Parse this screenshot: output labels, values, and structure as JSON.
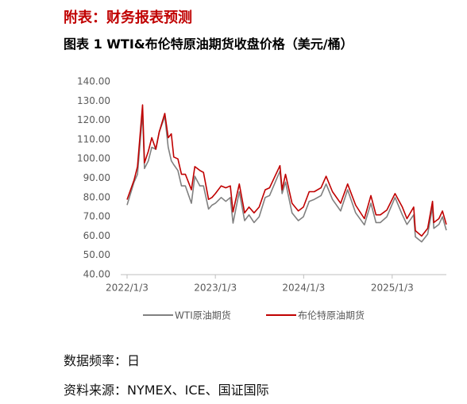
{
  "header": {
    "section": "附表：财务报表预测"
  },
  "notes": [
    "数据频率：日",
    "资料来源：NYMEX、ICE、国证国际"
  ],
  "chart_data": {
    "type": "line",
    "title": "图表 1 WTI&布伦特原油期货收盘价格（美元/桶）",
    "x": [
      "2022/1/3",
      "2022/2/1",
      "2022/2/15",
      "2022/3/8",
      "2022/3/16",
      "2022/4/1",
      "2022/4/15",
      "2022/5/2",
      "2022/5/16",
      "2022/6/8",
      "2022/6/22",
      "2022/7/5",
      "2022/7/15",
      "2022/8/1",
      "2022/8/16",
      "2022/9/1",
      "2022/9/26",
      "2022/10/10",
      "2022/10/31",
      "2022/11/15",
      "2022/12/6",
      "2022/12/20",
      "2023/1/3",
      "2023/1/27",
      "2023/2/15",
      "2023/3/6",
      "2023/3/17",
      "2023/4/12",
      "2023/5/4",
      "2023/5/22",
      "2023/6/12",
      "2023/7/3",
      "2023/7/28",
      "2023/8/15",
      "2023/9/27",
      "2023/10/6",
      "2023/10/20",
      "2023/11/16",
      "2023/12/12",
      "2024/1/2",
      "2024/1/26",
      "2024/2/16",
      "2024/3/15",
      "2024/4/5",
      "2024/5/1",
      "2024/6/4",
      "2024/7/3",
      "2024/8/5",
      "2024/9/10",
      "2024/10/7",
      "2024/10/28",
      "2024/11/15",
      "2024/12/12",
      "2025/1/15",
      "2025/2/14",
      "2025/3/5",
      "2025/4/2",
      "2025/4/9",
      "2025/5/5",
      "2025/5/30",
      "2025/6/19",
      "2025/6/24",
      "2025/7/15",
      "2025/7/30",
      "2025/8/15"
    ],
    "series": [
      {
        "name": "WTI原油期货",
        "color": "#808080",
        "values": [
          76.1,
          88,
          92,
          123.7,
          95,
          99,
          106,
          105,
          114,
          122,
          106,
          99,
          97,
          94,
          86,
          86,
          77,
          91,
          86,
          86,
          74,
          76,
          77,
          80,
          78,
          80,
          66.7,
          83,
          68,
          71,
          67,
          70,
          80,
          81,
          93.7,
          82,
          88,
          72,
          68,
          70,
          78,
          79,
          81,
          87,
          79,
          73,
          84,
          72,
          65.8,
          77,
          67,
          67,
          70,
          80,
          71,
          66,
          71,
          59.6,
          57,
          61,
          75,
          64,
          66,
          70,
          63
        ]
      },
      {
        "name": "布伦特原油期货",
        "color": "#c00000",
        "values": [
          78.9,
          89,
          96,
          128,
          98,
          104,
          111,
          105,
          114,
          123.6,
          111,
          113,
          101,
          100,
          92,
          92,
          84,
          96,
          94,
          93,
          79,
          80,
          82,
          86,
          85,
          86,
          72.5,
          87,
          72,
          75,
          72,
          75,
          84,
          85,
          96.5,
          84,
          92,
          77,
          73,
          75,
          83,
          83,
          85,
          91,
          83,
          77,
          87,
          76,
          69,
          81,
          71,
          71,
          73.5,
          82,
          75,
          69,
          75,
          62.8,
          60,
          64,
          78,
          67,
          69,
          73,
          66
        ]
      }
    ],
    "xlim": [
      "2022/1/3",
      "2025/8/15"
    ],
    "xticks": [
      "2022/1/3",
      "2023/1/3",
      "2024/1/3",
      "2025/1/3"
    ],
    "ylim": [
      40,
      140
    ],
    "yticks": [
      {
        "value": 40,
        "label": "40.00"
      },
      {
        "value": 50,
        "label": "50.00"
      },
      {
        "value": 60,
        "label": "60.00"
      },
      {
        "value": 70,
        "label": "70.00"
      },
      {
        "value": 80,
        "label": "80.00"
      },
      {
        "value": 90,
        "label": "90.00"
      },
      {
        "value": 100,
        "label": "100.00"
      },
      {
        "value": 110,
        "label": "110.00"
      },
      {
        "value": 120,
        "label": "120.00"
      },
      {
        "value": 130,
        "label": "130.00"
      },
      {
        "value": 140,
        "label": "140.00"
      }
    ],
    "grid": false,
    "legend": "bottom"
  }
}
